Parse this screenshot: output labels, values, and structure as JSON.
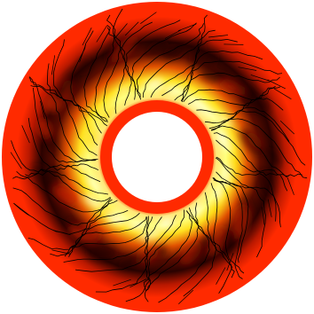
{
  "figure": {
    "kind": "annular-field-plot",
    "colormap": [
      "#ffffff",
      "#ffff66",
      "#ffd21e",
      "#1a0000",
      "#ff2a00"
    ],
    "ring_color": "#ff2a00",
    "hole_color": "#ffffff",
    "streamline_color": "#000000"
  }
}
